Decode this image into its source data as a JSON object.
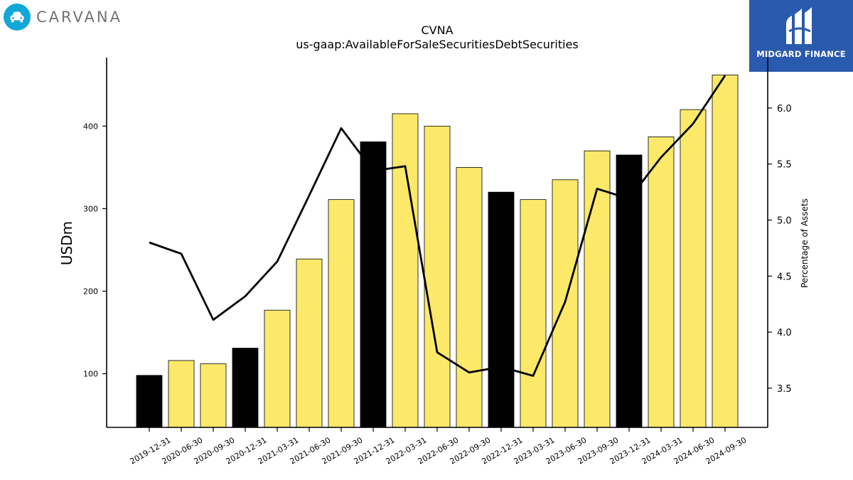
{
  "header": {
    "company_logo_text": "CARVANA",
    "sponsor_logo_text": "MIDGARD FINANCE"
  },
  "chart_data": {
    "type": "bar",
    "title": "CVNA",
    "subtitle": "us-gaap:AvailableForSaleSecuritiesDebtSecurities",
    "ylabel": "USDm",
    "y2label": "Percentage of Assets",
    "categories": [
      "2019-12-31",
      "2020-06-30",
      "2020-09-30",
      "2020-12-31",
      "2021-03-31",
      "2021-06-30",
      "2021-09-30",
      "2021-12-31",
      "2022-03-31",
      "2022-06-30",
      "2022-09-30",
      "2022-12-31",
      "2023-03-31",
      "2023-06-30",
      "2023-09-30",
      "2023-12-31",
      "2024-03-31",
      "2024-06-30",
      "2024-09-30"
    ],
    "series": [
      {
        "kind": "bar",
        "axis": "left",
        "values": [
          98,
          116,
          112,
          131,
          177,
          239,
          311,
          381,
          415,
          400,
          350,
          320,
          311,
          335,
          370,
          365,
          387,
          420,
          462
        ],
        "colors": [
          "#000000",
          "#fce96a",
          "#fce96a",
          "#000000",
          "#fce96a",
          "#fce96a",
          "#fce96a",
          "#000000",
          "#fce96a",
          "#fce96a",
          "#fce96a",
          "#000000",
          "#fce96a",
          "#fce96a",
          "#fce96a",
          "#000000",
          "#fce96a",
          "#fce96a",
          "#fce96a"
        ]
      },
      {
        "kind": "line",
        "axis": "right",
        "color": "#000000",
        "values": [
          4.8,
          4.7,
          4.11,
          4.32,
          4.63,
          5.22,
          5.82,
          5.44,
          5.48,
          3.82,
          3.64,
          3.69,
          3.61,
          4.27,
          5.28,
          5.19,
          5.56,
          5.86,
          6.29
        ]
      }
    ],
    "ylim": [
      35,
      483
    ],
    "y2lim": [
      3.15,
      6.45
    ],
    "yticks": [
      100,
      200,
      300,
      400
    ],
    "y2ticks": [
      "3.5",
      "4.0",
      "4.5",
      "5.0",
      "5.5",
      "6.0"
    ],
    "grid": false,
    "legend": "none",
    "colors": {
      "bar": "#fce96a",
      "bar_highlight": "#000000",
      "line": "#000000"
    }
  }
}
